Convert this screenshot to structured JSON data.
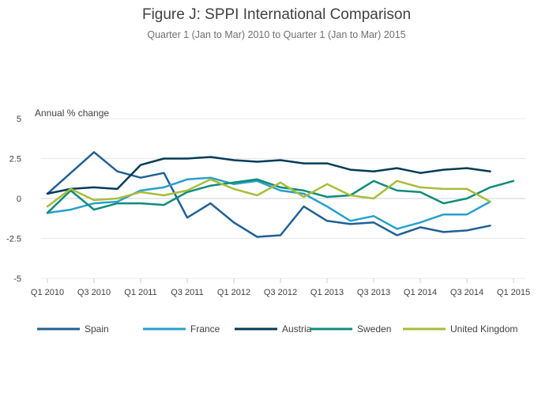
{
  "chart_data": {
    "type": "line",
    "title": "Figure J: SPPI International Comparison",
    "subtitle": "Quarter 1 (Jan to Mar) 2010 to Quarter 1 (Jan to Mar) 2015",
    "ylabel": "Annual % change",
    "xlabel": "",
    "ylim": [
      -5,
      5
    ],
    "yticks": [
      5,
      2.5,
      0,
      -2.5,
      -5
    ],
    "ytick_labels": [
      "5",
      "2.5",
      "0",
      "-2.5",
      "-5"
    ],
    "x": [
      "Q1 2010",
      "Q2 2010",
      "Q3 2010",
      "Q4 2010",
      "Q1 2011",
      "Q2 2011",
      "Q3 2011",
      "Q4 2011",
      "Q1 2012",
      "Q2 2012",
      "Q3 2012",
      "Q4 2012",
      "Q1 2013",
      "Q2 2013",
      "Q3 2013",
      "Q4 2013",
      "Q1 2014",
      "Q2 2014",
      "Q3 2014",
      "Q4 2014",
      "Q1 2015"
    ],
    "xtick_labels": [
      "Q1 2010",
      "Q3 2010",
      "Q1 2011",
      "Q3 2011",
      "Q1 2012",
      "Q3 2012",
      "Q1 2013",
      "Q3 2013",
      "Q1 2014",
      "Q3 2014",
      "Q1 2015"
    ],
    "grid": true,
    "legend_position": "bottom",
    "series": [
      {
        "name": "Spain",
        "color": "#206095",
        "values": [
          0.3,
          1.6,
          2.9,
          1.7,
          1.3,
          1.6,
          -1.2,
          -0.3,
          -1.5,
          -2.4,
          -2.3,
          -0.5,
          -1.4,
          -1.6,
          -1.5,
          -2.3,
          -1.8,
          -2.1,
          -2.0,
          -1.7,
          null
        ]
      },
      {
        "name": "France",
        "color": "#27a0cc",
        "values": [
          -0.9,
          -0.7,
          -0.3,
          -0.2,
          0.5,
          0.7,
          1.2,
          1.3,
          0.9,
          1.1,
          0.5,
          0.3,
          -0.5,
          -1.4,
          -1.1,
          -1.9,
          -1.5,
          -1.0,
          -1.0,
          -0.2,
          null
        ]
      },
      {
        "name": "Austria",
        "color": "#003c57",
        "values": [
          0.3,
          0.6,
          0.7,
          0.6,
          2.1,
          2.5,
          2.5,
          2.6,
          2.4,
          2.3,
          2.4,
          2.2,
          2.2,
          1.8,
          1.7,
          1.9,
          1.6,
          1.8,
          1.9,
          1.7,
          null
        ]
      },
      {
        "name": "Sweden",
        "color": "#118c7b",
        "values": [
          -0.9,
          0.5,
          -0.7,
          -0.3,
          -0.3,
          -0.4,
          0.4,
          0.8,
          1.0,
          1.2,
          0.7,
          0.5,
          0.1,
          0.2,
          1.1,
          0.5,
          0.4,
          -0.3,
          0.0,
          0.7,
          1.1
        ]
      },
      {
        "name": "United Kingdom",
        "color": "#a8bd3a",
        "values": [
          -0.5,
          0.6,
          -0.1,
          0.0,
          0.4,
          0.2,
          0.5,
          1.2,
          0.6,
          0.2,
          1.0,
          0.1,
          0.9,
          0.2,
          0.0,
          1.1,
          0.7,
          0.6,
          0.6,
          -0.2,
          null
        ]
      }
    ]
  }
}
